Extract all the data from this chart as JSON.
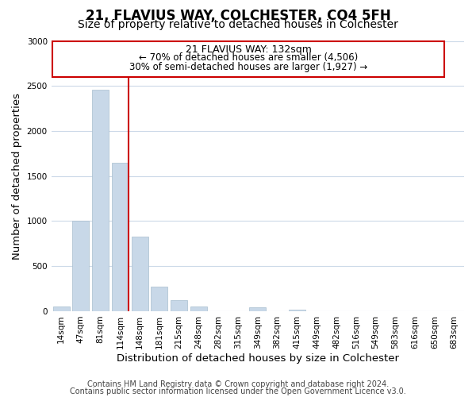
{
  "title": "21, FLAVIUS WAY, COLCHESTER, CO4 5FH",
  "subtitle": "Size of property relative to detached houses in Colchester",
  "xlabel": "Distribution of detached houses by size in Colchester",
  "ylabel": "Number of detached properties",
  "categories": [
    "14sqm",
    "47sqm",
    "81sqm",
    "114sqm",
    "148sqm",
    "181sqm",
    "215sqm",
    "248sqm",
    "282sqm",
    "315sqm",
    "349sqm",
    "382sqm",
    "415sqm",
    "449sqm",
    "482sqm",
    "516sqm",
    "549sqm",
    "583sqm",
    "616sqm",
    "650sqm",
    "683sqm"
  ],
  "values": [
    55,
    1000,
    2460,
    1650,
    830,
    270,
    120,
    55,
    0,
    0,
    40,
    0,
    20,
    0,
    0,
    0,
    0,
    0,
    0,
    0,
    0
  ],
  "bar_color": "#c8d8e8",
  "bar_edge_color": "#a8bece",
  "vline_color": "#cc0000",
  "annotation_title": "21 FLAVIUS WAY: 132sqm",
  "annotation_line1": "← 70% of detached houses are smaller (4,506)",
  "annotation_line2": "30% of semi-detached houses are larger (1,927) →",
  "annotation_box_color": "#ffffff",
  "annotation_box_edge": "#cc0000",
  "ylim": [
    0,
    3000
  ],
  "yticks": [
    0,
    500,
    1000,
    1500,
    2000,
    2500,
    3000
  ],
  "footer_line1": "Contains HM Land Registry data © Crown copyright and database right 2024.",
  "footer_line2": "Contains public sector information licensed under the Open Government Licence v3.0.",
  "background_color": "#ffffff",
  "grid_color": "#ccd9e8",
  "title_fontsize": 12,
  "subtitle_fontsize": 10,
  "axis_label_fontsize": 9.5,
  "tick_fontsize": 7.5,
  "footer_fontsize": 7,
  "annotation_title_fontsize": 9,
  "annotation_text_fontsize": 8.5
}
